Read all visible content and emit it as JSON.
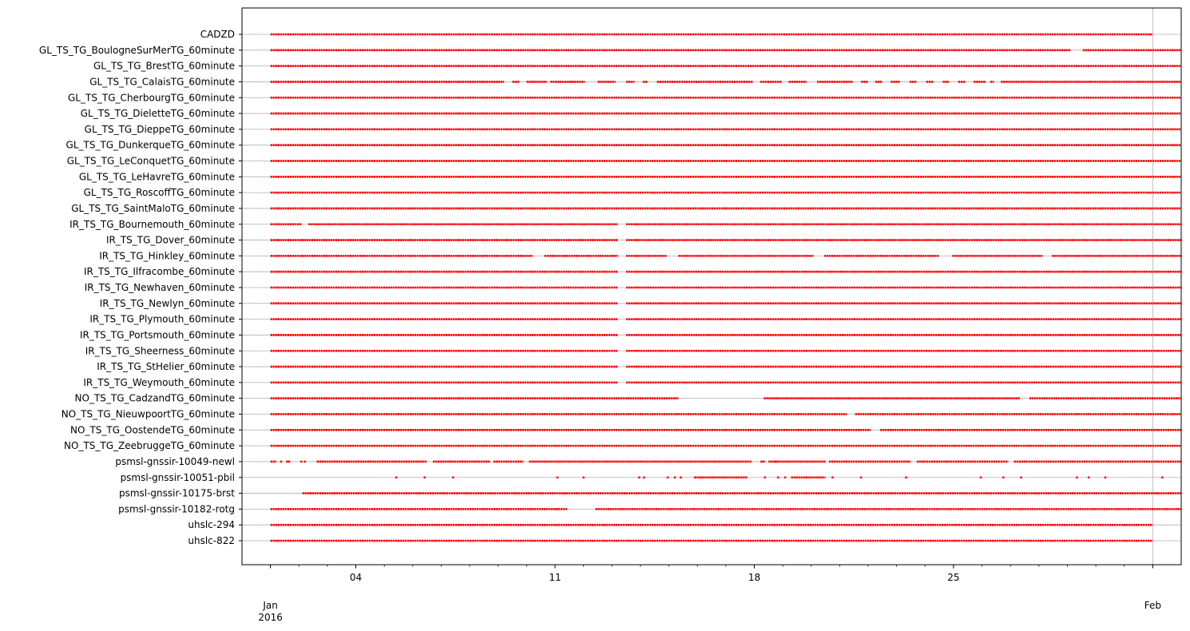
{
  "chart_data": {
    "type": "scatter",
    "title": "",
    "xlabel": "",
    "ylabel": "",
    "x_range": [
      "2015-12-31T00:00",
      "2016-02-02T00:00"
    ],
    "grid": "horizontal lines at each station",
    "vline": "2016-02-01",
    "marker_color": "#ff0000",
    "x_ticks": [
      {
        "date": "2016-01-04",
        "label": "04",
        "label2": ""
      },
      {
        "date": "2016-01-11",
        "label": "11",
        "label2": ""
      },
      {
        "date": "2016-01-18",
        "label": "18",
        "label2": ""
      },
      {
        "date": "2016-01-25",
        "label": "25",
        "label2": ""
      }
    ],
    "x_ticks_month": [
      {
        "date": "2016-01-01",
        "label": "Jan",
        "label2": "2016"
      },
      {
        "date": "2016-02-01",
        "label": "Feb",
        "label2": ""
      }
    ],
    "series": [
      {
        "name": "CADZD",
        "segments": [
          [
            "2016-01-01",
            "2016-02-01"
          ]
        ],
        "points": []
      },
      {
        "name": "GL_TS_TG_BoulogneSurMerTG_60minute",
        "segments": [
          [
            "2016-01-01",
            "2016-01-29T03:00"
          ],
          [
            "2016-01-29T13:00",
            "2016-02-02"
          ]
        ],
        "points": []
      },
      {
        "name": "GL_TS_TG_BrestTG_60minute",
        "segments": [
          [
            "2016-01-01",
            "2016-02-02"
          ]
        ],
        "points": []
      },
      {
        "name": "GL_TS_TG_CalaisTG_60minute",
        "segments": [
          [
            "2016-01-01",
            "2016-01-09T05:00"
          ],
          [
            "2016-01-09T12:00",
            "2016-01-09T18:00"
          ],
          [
            "2016-01-10T00:00",
            "2016-01-10T17:00"
          ],
          [
            "2016-01-10T20:00",
            "2016-01-12T01:00"
          ],
          [
            "2016-01-12T12:00",
            "2016-01-13T03:00"
          ],
          [
            "2016-01-13T12:00",
            "2016-01-13T19:00"
          ],
          [
            "2016-01-14T02:00",
            "2016-01-14T06:00"
          ],
          [
            "2016-01-14T14:00",
            "2016-01-17T23:00"
          ],
          [
            "2016-01-18T05:00",
            "2016-01-18T23:00"
          ],
          [
            "2016-01-19T05:00",
            "2016-01-19T20:00"
          ],
          [
            "2016-01-20T05:00",
            "2016-01-21T11:00"
          ],
          [
            "2016-01-21T18:00",
            "2016-01-22T00:00"
          ],
          [
            "2016-01-22T06:00",
            "2016-01-22T12:00"
          ],
          [
            "2016-01-22T19:00",
            "2016-01-23T03:00"
          ],
          [
            "2016-01-23T11:00",
            "2016-01-23T17:00"
          ],
          [
            "2016-01-24T01:00",
            "2016-01-24T07:00"
          ],
          [
            "2016-01-24T15:00",
            "2016-01-24T20:00"
          ],
          [
            "2016-01-25T04:00",
            "2016-01-25T10:00"
          ],
          [
            "2016-01-25T17:00",
            "2016-01-26T03:00"
          ],
          [
            "2016-01-26T07:00",
            "2016-01-26T10:00"
          ],
          [
            "2016-01-26T16:00",
            "2016-02-02"
          ]
        ],
        "points": []
      },
      {
        "name": "GL_TS_TG_CherbourgTG_60minute",
        "segments": [
          [
            "2016-01-01",
            "2016-02-02"
          ]
        ],
        "points": []
      },
      {
        "name": "GL_TS_TG_DieletteTG_60minute",
        "segments": [
          [
            "2016-01-01",
            "2016-02-02"
          ]
        ],
        "points": []
      },
      {
        "name": "GL_TS_TG_DieppeTG_60minute",
        "segments": [
          [
            "2016-01-01",
            "2016-02-02"
          ]
        ],
        "points": []
      },
      {
        "name": "GL_TS_TG_DunkerqueTG_60minute",
        "segments": [
          [
            "2016-01-01",
            "2016-02-02"
          ]
        ],
        "points": []
      },
      {
        "name": "GL_TS_TG_LeConquetTG_60minute",
        "segments": [
          [
            "2016-01-01",
            "2016-02-02"
          ]
        ],
        "points": []
      },
      {
        "name": "GL_TS_TG_LeHavreTG_60minute",
        "segments": [
          [
            "2016-01-01",
            "2016-02-02"
          ]
        ],
        "points": []
      },
      {
        "name": "GL_TS_TG_RoscoffTG_60minute",
        "segments": [
          [
            "2016-01-01",
            "2016-02-02"
          ]
        ],
        "points": []
      },
      {
        "name": "GL_TS_TG_SaintMaloTG_60minute",
        "segments": [
          [
            "2016-01-01",
            "2016-02-02"
          ]
        ],
        "points": []
      },
      {
        "name": "IR_TS_TG_Bournemouth_60minute",
        "segments": [
          [
            "2016-01-01",
            "2016-01-02T02:00"
          ],
          [
            "2016-01-02T08:00",
            "2016-01-13T05:00"
          ],
          [
            "2016-01-13T12:00",
            "2016-02-02"
          ]
        ],
        "points": []
      },
      {
        "name": "IR_TS_TG_Dover_60minute",
        "segments": [
          [
            "2016-01-01",
            "2016-01-13T05:00"
          ],
          [
            "2016-01-13T12:00",
            "2016-02-02"
          ]
        ],
        "points": []
      },
      {
        "name": "IR_TS_TG_Hinkley_60minute",
        "segments": [
          [
            "2016-01-01",
            "2016-01-10T05:00"
          ],
          [
            "2016-01-10T15:00",
            "2016-01-13T05:00"
          ],
          [
            "2016-01-13T12:00",
            "2016-01-14T22:00"
          ],
          [
            "2016-01-15T08:00",
            "2016-01-20T02:00"
          ],
          [
            "2016-01-20T11:00",
            "2016-01-24T12:00"
          ],
          [
            "2016-01-24T23:00",
            "2016-01-28T03:00"
          ],
          [
            "2016-01-28T11:00",
            "2016-02-02"
          ]
        ],
        "points": []
      },
      {
        "name": "IR_TS_TG_Ilfracombe_60minute",
        "segments": [
          [
            "2016-01-01",
            "2016-01-13T05:00"
          ],
          [
            "2016-01-13T12:00",
            "2016-02-02"
          ]
        ],
        "points": []
      },
      {
        "name": "IR_TS_TG_Newhaven_60minute",
        "segments": [
          [
            "2016-01-01",
            "2016-01-13T05:00"
          ],
          [
            "2016-01-13T12:00",
            "2016-02-02"
          ]
        ],
        "points": []
      },
      {
        "name": "IR_TS_TG_Newlyn_60minute",
        "segments": [
          [
            "2016-01-01",
            "2016-01-13T05:00"
          ],
          [
            "2016-01-13T12:00",
            "2016-02-02"
          ]
        ],
        "points": []
      },
      {
        "name": "IR_TS_TG_Plymouth_60minute",
        "segments": [
          [
            "2016-01-01",
            "2016-01-13T05:00"
          ],
          [
            "2016-01-13T12:00",
            "2016-02-02"
          ]
        ],
        "points": []
      },
      {
        "name": "IR_TS_TG_Portsmouth_60minute",
        "segments": [
          [
            "2016-01-01",
            "2016-01-13T05:00"
          ],
          [
            "2016-01-13T12:00",
            "2016-02-02"
          ]
        ],
        "points": []
      },
      {
        "name": "IR_TS_TG_Sheerness_60minute",
        "segments": [
          [
            "2016-01-01",
            "2016-01-13T05:00"
          ],
          [
            "2016-01-13T12:00",
            "2016-02-02"
          ]
        ],
        "points": []
      },
      {
        "name": "IR_TS_TG_StHelier_60minute",
        "segments": [
          [
            "2016-01-01",
            "2016-01-13T05:00"
          ],
          [
            "2016-01-13T12:00",
            "2016-02-02"
          ]
        ],
        "points": []
      },
      {
        "name": "IR_TS_TG_Weymouth_60minute",
        "segments": [
          [
            "2016-01-01",
            "2016-01-13T05:00"
          ],
          [
            "2016-01-13T12:00",
            "2016-02-02"
          ]
        ],
        "points": []
      },
      {
        "name": "NO_TS_TG_CadzandTG_60minute",
        "segments": [
          [
            "2016-01-01",
            "2016-01-15T08:00"
          ],
          [
            "2016-01-18T08:00",
            "2016-01-27T08:00"
          ],
          [
            "2016-01-27T16:00",
            "2016-02-02"
          ]
        ],
        "points": []
      },
      {
        "name": "NO_TS_TG_NieuwpoortTG_60minute",
        "segments": [
          [
            "2016-01-01",
            "2016-01-21T06:00"
          ],
          [
            "2016-01-21T13:00",
            "2016-02-02"
          ]
        ],
        "points": []
      },
      {
        "name": "NO_TS_TG_OostendeTG_60minute",
        "segments": [
          [
            "2016-01-01",
            "2016-01-22T02:00"
          ],
          [
            "2016-01-22T10:00",
            "2016-02-02"
          ]
        ],
        "points": []
      },
      {
        "name": "NO_TS_TG_ZeebruggeTG_60minute",
        "segments": [
          [
            "2016-01-01",
            "2016-02-02"
          ]
        ],
        "points": []
      },
      {
        "name": "psmsl-gnssir-10049-newl",
        "segments": [
          [
            "2016-01-01",
            "2016-01-01T05:00"
          ],
          [
            "2016-01-01T15:00",
            "2016-01-01T17:00"
          ],
          [
            "2016-01-02T15:00",
            "2016-01-06T12:00"
          ],
          [
            "2016-01-06T17:00",
            "2016-01-08T17:00"
          ],
          [
            "2016-01-08T20:00",
            "2016-01-09T21:00"
          ],
          [
            "2016-01-10T02:00",
            "2016-01-17T22:00"
          ],
          [
            "2016-01-18T12:00",
            "2016-01-20T12:00"
          ],
          [
            "2016-01-20T15:00",
            "2016-01-23T12:00"
          ],
          [
            "2016-01-23T17:00",
            "2016-01-26T22:00"
          ],
          [
            "2016-01-27T03:00",
            "2016-02-02"
          ]
        ],
        "points": [
          "2016-01-01T09:00",
          "2016-01-01T14:00",
          "2016-01-02T02:00",
          "2016-01-02T05:00",
          "2016-01-18T06:00",
          "2016-01-18T08:00",
          "2016-01-18T18:00"
        ]
      },
      {
        "name": "psmsl-gnssir-10051-pbil",
        "segments": [
          [
            "2016-01-15T22:00",
            "2016-01-17T18:00"
          ],
          [
            "2016-01-19T07:00",
            "2016-01-20T12:00"
          ]
        ],
        "points": [
          "2016-01-05T10:00",
          "2016-01-06T10:00",
          "2016-01-07T10:00",
          "2016-01-11T02:00",
          "2016-01-12T00:00",
          "2016-01-13T23:00",
          "2016-01-14T03:00",
          "2016-01-14T23:00",
          "2016-01-15T05:00",
          "2016-01-15T10:00",
          "2016-01-15T22:00",
          "2016-01-16T03:00",
          "2016-01-18T09:00",
          "2016-01-18T20:00",
          "2016-01-19T02:00",
          "2016-01-20T18:00",
          "2016-01-21T18:00",
          "2016-01-23T08:00",
          "2016-01-25T23:00",
          "2016-01-26T18:00",
          "2016-01-27T09:00",
          "2016-01-29T08:00",
          "2016-01-29T18:00",
          "2016-01-30T08:00",
          "2016-02-01T08:00"
        ]
      },
      {
        "name": "psmsl-gnssir-10175-brst",
        "segments": [
          [
            "2016-01-02T03:00",
            "2016-02-02"
          ]
        ],
        "points": []
      },
      {
        "name": "psmsl-gnssir-10182-rotg",
        "segments": [
          [
            "2016-01-01",
            "2016-01-11T10:00"
          ],
          [
            "2016-01-12T10:00",
            "2016-02-02"
          ]
        ],
        "points": []
      },
      {
        "name": "uhslc-294",
        "segments": [
          [
            "2016-01-01",
            "2016-02-01"
          ]
        ],
        "points": []
      },
      {
        "name": "uhslc-822",
        "segments": [
          [
            "2016-01-01",
            "2016-02-01"
          ]
        ],
        "points": []
      }
    ]
  }
}
